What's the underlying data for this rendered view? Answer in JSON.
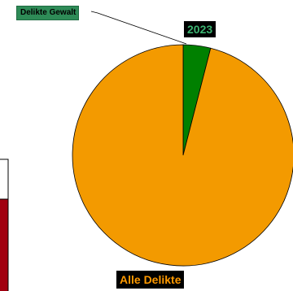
{
  "chart_data": [
    {
      "type": "pie",
      "title": "2023",
      "slices": [
        {
          "label": "Delikte Gewalt",
          "value": 4,
          "color": "#008000"
        },
        {
          "label": "Alle Delikte",
          "value": 96,
          "color": "#f39a00"
        }
      ]
    },
    {
      "type": "bar",
      "note_visible": "partially cropped second chart",
      "colors": {
        "bar": "#a10010"
      }
    }
  ]
}
